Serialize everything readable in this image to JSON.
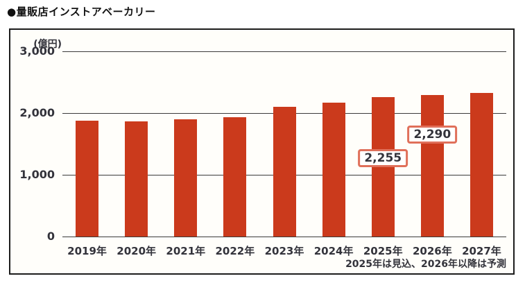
{
  "chart_data": {
    "type": "bar",
    "title": "●量販店インストアベーカリー",
    "unit_label": "(億円)",
    "categories": [
      "2019年",
      "2020年",
      "2021年",
      "2022年",
      "2023年",
      "2024年",
      "2025年",
      "2026年",
      "2027年"
    ],
    "values": [
      1875,
      1865,
      1895,
      1930,
      2100,
      2165,
      2255,
      2290,
      2330
    ],
    "ylim": [
      0,
      3000
    ],
    "yticks": [
      {
        "value": 3000,
        "label": "3,000"
      },
      {
        "value": 2000,
        "label": "2,000"
      },
      {
        "value": 1000,
        "label": "1,000"
      },
      {
        "value": 0,
        "label": "0"
      }
    ],
    "annotations": [
      {
        "category": "2025年",
        "label": "2,255"
      },
      {
        "category": "2026年",
        "label": "2,290"
      }
    ],
    "footnote": "2025年は見込、2026年以降は予測",
    "bar_color": "#cb3a1c",
    "grid_color": "#3a3a3a",
    "callout_border_color": "#e0705a",
    "legend": "none",
    "grid": "horizontal-only"
  }
}
